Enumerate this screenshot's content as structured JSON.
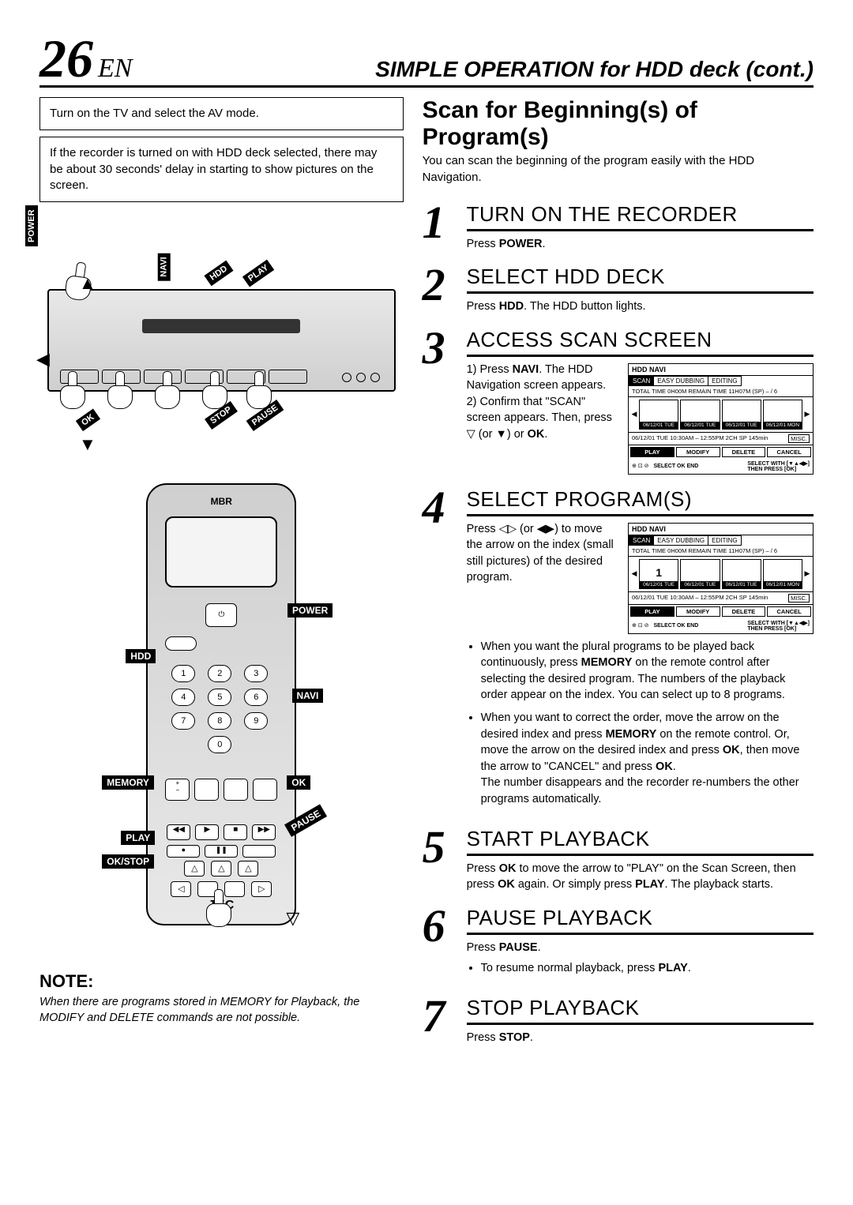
{
  "header": {
    "page_number": "26",
    "lang": "EN",
    "title": "SIMPLE OPERATION for HDD deck (cont.)"
  },
  "left": {
    "box1": "Turn on the TV and select the AV mode.",
    "box2": "If the recorder is turned on with HDD deck selected, there may be about 30 seconds' delay in starting to show pictures on the screen.",
    "deck_labels": {
      "power": "POWER",
      "navi": "NAVI",
      "hdd": "HDD",
      "play": "PLAY",
      "ok": "OK",
      "stop": "STOP",
      "pause": "PAUSE"
    },
    "remote": {
      "top_brand": "MBR",
      "brand": "JVC",
      "labels": {
        "power": "POWER",
        "hdd": "HDD",
        "navi": "NAVI",
        "memory": "MEMORY",
        "ok": "OK",
        "play": "PLAY",
        "pause": "PAUSE",
        "okstop": "OK/STOP"
      },
      "keypad": [
        "1",
        "2",
        "3",
        "4",
        "5",
        "6",
        "7",
        "8",
        "9",
        "",
        "0",
        ""
      ]
    },
    "note_hdr": "NOTE:",
    "note_body": "When there are programs stored in MEMORY for Playback, the MODIFY and DELETE commands are not possible."
  },
  "right": {
    "section_title": "Scan for Beginning(s) of Program(s)",
    "section_sub": "You can scan the beginning of the program easily with the HDD Navigation.",
    "steps": [
      {
        "n": "1",
        "title": "TURN ON THE RECORDER",
        "text_html": "Press <span class='b'>POWER</span>."
      },
      {
        "n": "2",
        "title": "SELECT HDD DECK",
        "text_html": "Press <span class='b'>HDD</span>. The HDD button lights."
      },
      {
        "n": "3",
        "title": "ACCESS SCAN SCREEN",
        "text_html": "1) Press <span class='b'>NAVI</span>. The HDD Navigation screen appears.<br>2) Confirm that \"SCAN\" screen appears. Then, press ▽ (or ▼) or <span class='b'>OK</span>.",
        "has_panel": true,
        "panel_selected": null
      },
      {
        "n": "4",
        "title": "SELECT PROGRAM(S)",
        "text_html": "Press ◁▷ (or ◀▶) to move the arrow on the index (small still pictures) of the desired program.",
        "has_panel": true,
        "panel_selected": "1",
        "after_html": "<ul><li>When you want the plural programs to be played back continuously, press <span class='b'>MEMORY</span> on the remote control after selecting the desired program. The numbers of the playback order appear on the index. You can select up to 8 programs.</li><li>When you want to correct the order, move the arrow on the desired index and press <span class='b'>MEMORY</span> on the remote control. Or, move the arrow on the desired index and press <span class='b'>OK</span>, then move the arrow to \"CANCEL\" and press <span class='b'>OK</span>.<br>The number disappears and the recorder re-numbers the other programs automatically.</li></ul>"
      },
      {
        "n": "5",
        "title": "START PLAYBACK",
        "text_html": "Press <span class='b'>OK</span> to move the arrow to \"PLAY\" on the Scan Screen, then press <span class='b'>OK</span> again. Or simply press <span class='b'>PLAY</span>. The playback starts."
      },
      {
        "n": "6",
        "title": "PAUSE PLAYBACK",
        "text_html": "Press <span class='b'>PAUSE</span>.<ul><li>To resume normal playback, press <span class='b'>PLAY</span>.</li></ul>"
      },
      {
        "n": "7",
        "title": "STOP PLAYBACK",
        "text_html": "Press <span class='b'>STOP</span>."
      }
    ],
    "navi_panel": {
      "title": "HDD NAVI",
      "tabs": [
        "SCAN",
        "EASY DUBBING",
        "EDITING"
      ],
      "info": "TOTAL TIME 0H00M   REMAIN TIME 11H07M (SP)   – / 6",
      "thumbs": [
        "06/12/01 TUE",
        "06/12/01 TUE",
        "06/12/01 TUE",
        "06/12/01 MON"
      ],
      "detail_left": "06/12/01 TUE 10:30AM – 12:55PM 2CH SP 145min",
      "detail_right": "MISC.",
      "btns": [
        "PLAY",
        "MODIFY",
        "DELETE",
        "CANCEL"
      ],
      "foot_left": "SELECT  OK  END",
      "foot_right1": "SELECT WITH [▼▲◀▶]",
      "foot_right2": "THEN PRESS   [OK]"
    }
  },
  "colors": {
    "text": "#000000",
    "bg": "#ffffff",
    "remote_grad_a": "#cfcfcf",
    "remote_grad_b": "#e8e8e8"
  }
}
